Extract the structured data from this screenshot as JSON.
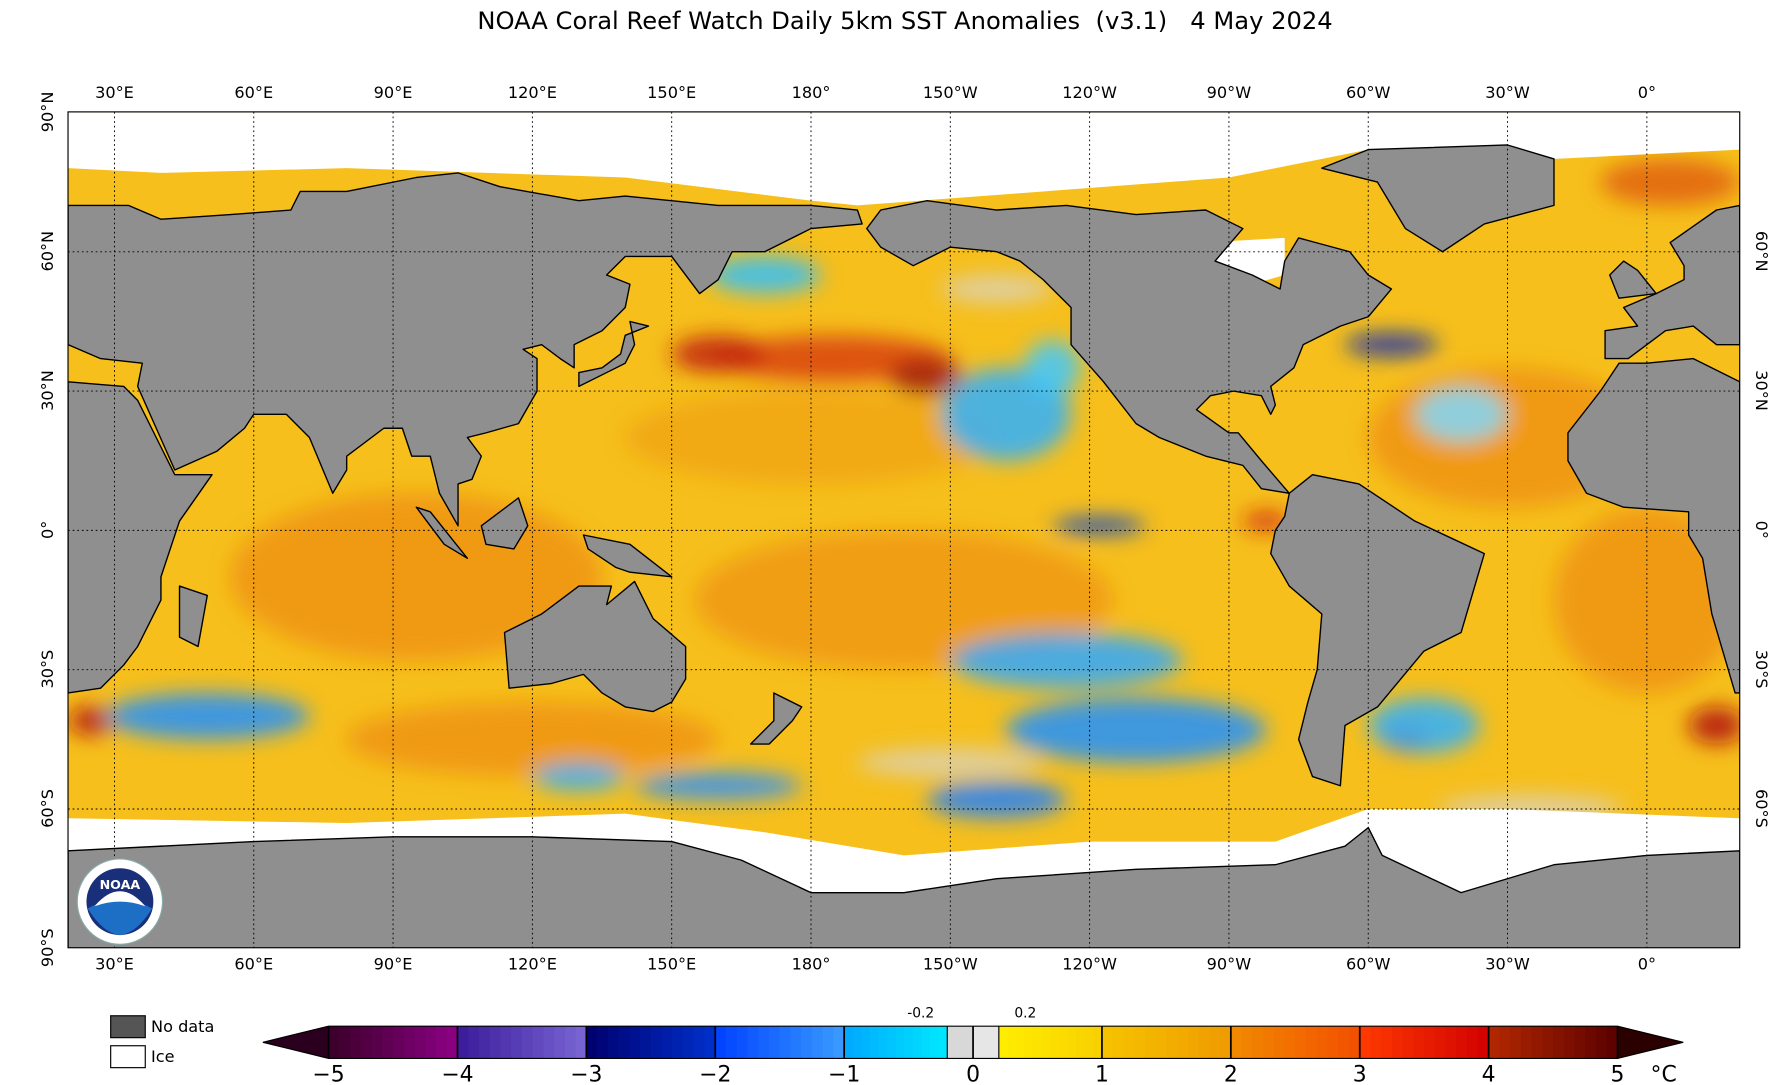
{
  "title": "NOAA Coral Reef Watch Daily 5km SST Anomalies  (v3.1)   4 May 2024",
  "longitude_labels": [
    "30°E",
    "60°E",
    "90°E",
    "120°E",
    "150°E",
    "180°",
    "150°W",
    "120°W",
    "90°W",
    "60°W",
    "30°W",
    "0°"
  ],
  "latitude_labels": [
    "90°N",
    "60°N",
    "30°N",
    "0°",
    "30°S",
    "60°S",
    "90°S"
  ],
  "legend": {
    "no_data": "No data",
    "ice": "Ice"
  },
  "logo": "NOAA",
  "colorbar": {
    "ticks": [
      {
        "value": -5,
        "label": "−5"
      },
      {
        "value": -4,
        "label": "−4"
      },
      {
        "value": -3,
        "label": "−3"
      },
      {
        "value": -2,
        "label": "−2"
      },
      {
        "value": -1,
        "label": "−1"
      },
      0,
      1,
      2,
      3,
      4,
      5
    ],
    "threshold_labels": [
      -0.2,
      0.2
    ],
    "unit": "°C"
  }
}
